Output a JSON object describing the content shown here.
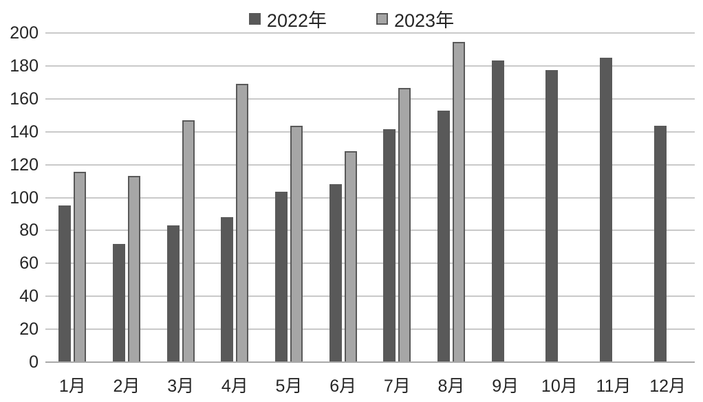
{
  "chart_data": {
    "type": "bar",
    "title": "",
    "categories": [
      "1月",
      "2月",
      "3月",
      "4月",
      "5月",
      "6月",
      "7月",
      "8月",
      "9月",
      "10月",
      "11月",
      "12月"
    ],
    "series": [
      {
        "name": "2022年",
        "color": "#595959",
        "values": [
          95,
          72,
          83,
          88,
          103.5,
          108,
          141.5,
          153,
          183.5,
          177.5,
          185,
          143.5
        ]
      },
      {
        "name": "2023年",
        "color": "#a6a6a6",
        "border_color": "#595959",
        "values": [
          115.5,
          113,
          147,
          169,
          143.5,
          128,
          166.5,
          194.5,
          null,
          null,
          null,
          null
        ]
      }
    ],
    "xlabel": "",
    "ylabel": "",
    "ylim": [
      0,
      200
    ],
    "y_ticks": [
      0,
      20,
      40,
      60,
      80,
      100,
      120,
      140,
      160,
      180,
      200
    ],
    "grid": true,
    "legend_position": "top-center",
    "colors": {
      "background": "#ffffff",
      "gridline": "#c9c9c9",
      "axis_line": "#a8a8a8",
      "text": "#262626"
    }
  }
}
